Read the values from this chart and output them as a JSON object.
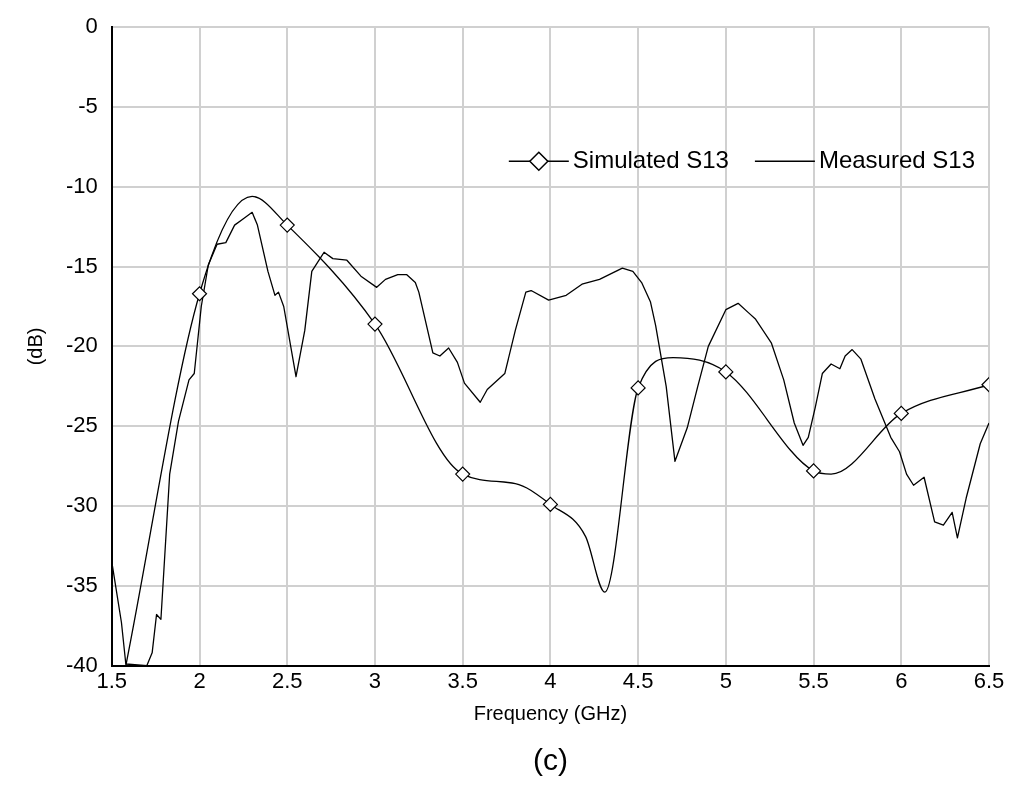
{
  "chart_data": {
    "type": "line",
    "xlabel": "Frequency (GHz)",
    "ylabel": "(dB)",
    "annotations": [
      "(c)"
    ],
    "xlim": [
      1.5,
      6.5
    ],
    "xticks": [
      1.5,
      2,
      2.5,
      3,
      3.5,
      4,
      4.5,
      5,
      5.5,
      6,
      6.5
    ],
    "ylim": [
      -40,
      0
    ],
    "yticks": [
      -40,
      -35,
      -30,
      -25,
      -20,
      -15,
      -10,
      -5,
      0
    ],
    "grid": true,
    "legend": "top right",
    "line_style": "solid",
    "series": [
      {
        "name": "Simulated S13",
        "color": "#000000",
        "marker": "diamond",
        "x": [
          1.58,
          2,
          2.3,
          2.5,
          3,
          3.5,
          3.8,
          4,
          4.2,
          4.31,
          4.5,
          4.7,
          5,
          5.5,
          5.6,
          6,
          6.5
        ],
        "values": [
          -40,
          -16.7,
          -10.6,
          -12.4,
          -18.6,
          -28,
          -28.6,
          -29.9,
          -31.9,
          -35.4,
          -22.6,
          -20.7,
          -21.6,
          -27.8,
          -28.0,
          -24.2,
          -22.4
        ]
      },
      {
        "name": "Measured S13",
        "color": "#000000",
        "marker": "none",
        "x": [
          1.5,
          1.555,
          1.58,
          1.7,
          1.73,
          1.755,
          1.78,
          1.83,
          1.88,
          1.94,
          1.97,
          2.01,
          2.05,
          2.1,
          2.15,
          2.2,
          2.25,
          2.3,
          2.33,
          2.39,
          2.43,
          2.45,
          2.48,
          2.55,
          2.6,
          2.64,
          2.71,
          2.76,
          2.84,
          2.92,
          3.01,
          3.06,
          3.13,
          3.18,
          3.23,
          3.25,
          3.33,
          3.37,
          3.42,
          3.47,
          3.51,
          3.6,
          3.64,
          3.74,
          3.8,
          3.86,
          3.89,
          3.99,
          4.09,
          4.18,
          4.28,
          4.41,
          4.47,
          4.52,
          4.57,
          4.6,
          4.66,
          4.71,
          4.78,
          4.84,
          4.9,
          5.0,
          5.07,
          5.13,
          5.17,
          5.26,
          5.33,
          5.39,
          5.44,
          5.47,
          5.51,
          5.55,
          5.6,
          5.65,
          5.68,
          5.72,
          5.77,
          5.85,
          5.94,
          5.99,
          6.03,
          6.07,
          6.13,
          6.19,
          6.24,
          6.29,
          6.32,
          6.37,
          6.45,
          6.5
        ],
        "values": [
          -33.5,
          -37.3,
          -39.9,
          -40,
          -39.2,
          -36.8,
          -37.1,
          -28.0,
          -24.7,
          -22.1,
          -21.7,
          -17.5,
          -14.9,
          -13.6,
          -13.5,
          -12.4,
          -12.0,
          -11.6,
          -12.4,
          -15.3,
          -16.8,
          -16.6,
          -17.5,
          -21.9,
          -19.0,
          -15.3,
          -14.1,
          -14.5,
          -14.6,
          -15.6,
          -16.3,
          -15.8,
          -15.5,
          -15.5,
          -16.0,
          -16.6,
          -20.4,
          -20.6,
          -20.1,
          -21.0,
          -22.3,
          -23.5,
          -22.7,
          -21.7,
          -19.0,
          -16.6,
          -16.5,
          -17.1,
          -16.8,
          -16.1,
          -15.8,
          -15.1,
          -15.3,
          -16.0,
          -17.2,
          -18.7,
          -22.5,
          -27.2,
          -25.1,
          -22.5,
          -20.0,
          -17.7,
          -17.3,
          -17.9,
          -18.3,
          -19.8,
          -22.1,
          -24.8,
          -26.2,
          -25.7,
          -23.8,
          -21.7,
          -21.1,
          -21.4,
          -20.6,
          -20.2,
          -20.8,
          -23.3,
          -25.7,
          -26.6,
          -28.0,
          -28.7,
          -28.2,
          -31.0,
          -31.2,
          -30.4,
          -32.0,
          -29.5,
          -26.1,
          -24.8
        ]
      }
    ]
  }
}
